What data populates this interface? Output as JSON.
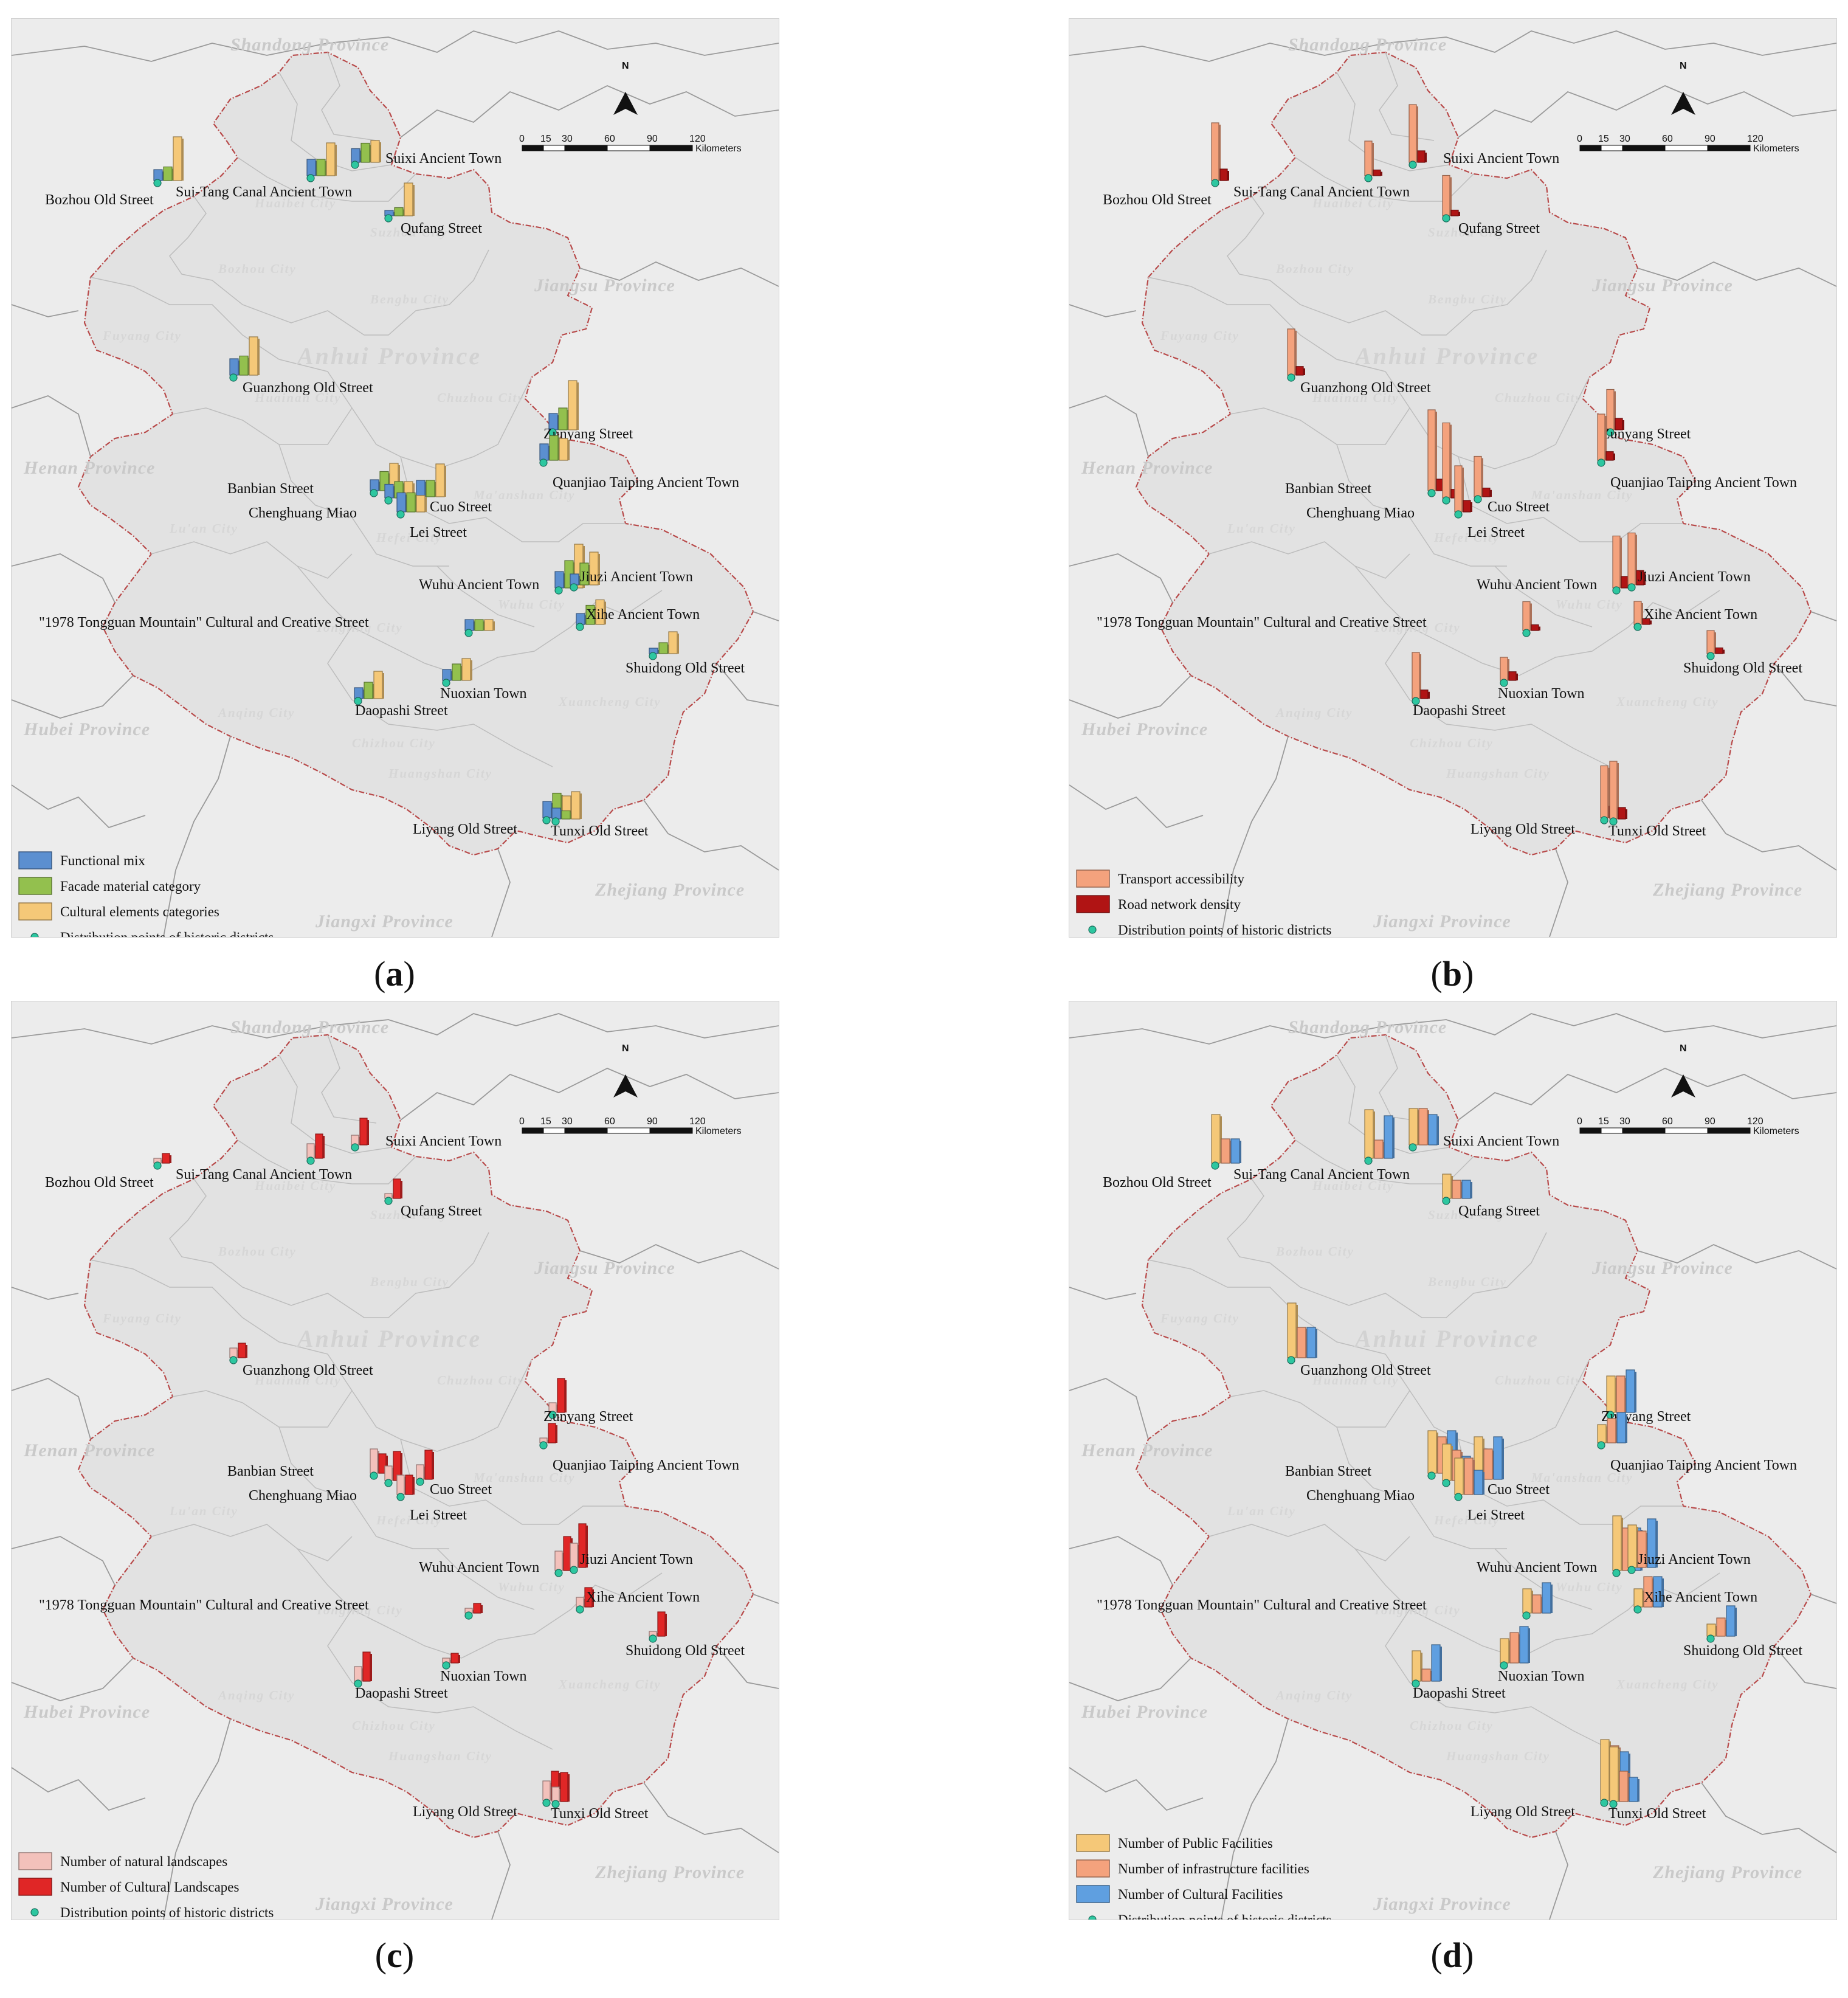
{
  "panels": [
    {
      "label": "a",
      "legend": [
        "Functional mix",
        "Facade material category",
        "Cultural elements categories",
        "Distribution points of historic districts"
      ],
      "colors": [
        "#5b8fd0",
        "#93c04e",
        "#f5c878"
      ]
    },
    {
      "label": "b",
      "legend": [
        "Transport accessibility",
        "Road network density",
        "Distribution points of historic districts"
      ],
      "colors": [
        "#f4a27d",
        "#b01414"
      ]
    },
    {
      "label": "c",
      "legend": [
        "Number of natural landscapes",
        "Number of Cultural Landscapes",
        "Distribution points of historic districts"
      ],
      "colors": [
        "#f3c1bb",
        "#e02626"
      ]
    },
    {
      "label": "d",
      "legend": [
        "Number of Public Facilities",
        "Number of infrastructure facilities",
        "Number of Cultural Facilities",
        "Distribution points of historic districts"
      ],
      "colors": [
        "#f5c878",
        "#f4a27d",
        "#5f9fe0"
      ]
    }
  ],
  "map_text": {
    "provinces": [
      "Shandong Province",
      "Jiangsu Province",
      "Henan Province",
      "Hubei Province",
      "Jiangxi Province",
      "Zhejiang Province"
    ],
    "main_region": "Anhui Province",
    "cities": [
      "Huaibei City",
      "Suzhou City",
      "Bozhou City",
      "Bengbu City",
      "Fuyang City",
      "Huainan City",
      "Chuzhou City",
      "Lu'an City",
      "Hefei City",
      "Ma'anshan City",
      "Wuhu City",
      "Tongling City",
      "Xuancheng City",
      "Anqing City",
      "Chizhou City",
      "Huangshan City"
    ],
    "scale_ticks": [
      "0",
      "15",
      "30",
      "60",
      "90",
      "120"
    ],
    "scale_unit": "Kilometers",
    "north": "N"
  },
  "sites": [
    {
      "name": "Bozhou Old Street",
      "a": [
        2,
        2.5,
        8
      ],
      "b": [
        10,
        2
      ],
      "c": [
        1,
        2
      ],
      "d": [
        8,
        4,
        4
      ]
    },
    {
      "name": "Sui-Tang Canal Ancient Town",
      "a": [
        3,
        3,
        6
      ],
      "b": [
        6,
        1
      ],
      "c": [
        3,
        5
      ],
      "d": [
        8,
        3,
        7
      ]
    },
    {
      "name": "Suixi Ancient Town",
      "a": [
        2.5,
        3.5,
        4
      ],
      "b": [
        10,
        2
      ],
      "c": [
        2,
        5.5
      ],
      "d": [
        6,
        6,
        5
      ]
    },
    {
      "name": "Qufang Street",
      "a": [
        1,
        1.5,
        6
      ],
      "b": [
        7,
        1
      ],
      "c": [
        1,
        4
      ],
      "d": [
        4,
        3,
        3
      ]
    },
    {
      "name": "Guanzhong Old Street",
      "a": [
        3,
        3.5,
        7
      ],
      "b": [
        8,
        1.5
      ],
      "c": [
        2,
        3
      ],
      "d": [
        9,
        5,
        5
      ]
    },
    {
      "name": "Zunyang Street",
      "a": [
        3,
        4,
        9
      ],
      "b": [
        7,
        2
      ],
      "c": [
        2,
        7
      ],
      "d": [
        6,
        6,
        7
      ]
    },
    {
      "name": "Quanjiao Taiping Ancient Town",
      "a": [
        3,
        4.5,
        4
      ],
      "b": [
        8,
        1.5
      ],
      "c": [
        1,
        4
      ],
      "d": [
        3,
        4,
        5
      ]
    },
    {
      "name": "Banbian Street",
      "a": [
        2,
        3.5,
        5
      ],
      "b": [
        14,
        2
      ],
      "c": [
        5,
        4
      ],
      "d": [
        7,
        6,
        7
      ]
    },
    {
      "name": "Chenghuang Miao",
      "a": [
        2.5,
        3,
        3
      ],
      "b": [
        13,
        1.5
      ],
      "c": [
        3,
        6
      ],
      "d": [
        6,
        5,
        4
      ]
    },
    {
      "name": "Cuo Street",
      "a": [
        3,
        3,
        6
      ],
      "b": [
        7,
        1.5
      ],
      "c": [
        3,
        6
      ],
      "d": [
        7,
        5,
        7
      ]
    },
    {
      "name": "Lei Street",
      "a": [
        3.5,
        3.5,
        3
      ],
      "b": [
        8,
        2
      ],
      "c": [
        4,
        4
      ],
      "d": [
        6,
        6,
        4
      ]
    },
    {
      "name": "Wuhu Ancient Town",
      "a": [
        3,
        5,
        8
      ],
      "b": [
        9,
        2
      ],
      "c": [
        4,
        7
      ],
      "d": [
        9,
        7,
        7
      ]
    },
    {
      "name": "Jiuzi Ancient Town",
      "a": [
        2,
        4,
        6
      ],
      "b": [
        9,
        2.5
      ],
      "c": [
        5,
        9
      ],
      "d": [
        7,
        6,
        8
      ]
    },
    {
      "name": "Xihe Ancient Town",
      "a": [
        2,
        3.5,
        4.5
      ],
      "b": [
        4,
        1
      ],
      "c": [
        2,
        4
      ],
      "d": [
        3,
        5,
        5
      ]
    },
    {
      "name": "\"1978 Tongguan Mountain\" Cultural and Creative Street",
      "a": [
        2,
        2,
        2
      ],
      "b": [
        5,
        1
      ],
      "c": [
        1,
        2
      ],
      "d": [
        4,
        3,
        5
      ]
    },
    {
      "name": "Shuidong Old Street",
      "a": [
        1,
        2,
        4
      ],
      "b": [
        4,
        1
      ],
      "c": [
        1,
        5
      ],
      "d": [
        2,
        3,
        5
      ]
    },
    {
      "name": "Nuoxian Town",
      "a": [
        2,
        3,
        4
      ],
      "b": [
        4,
        1.5
      ],
      "c": [
        1,
        2
      ],
      "d": [
        4,
        5,
        6
      ]
    },
    {
      "name": "Daopashi Street",
      "a": [
        2,
        3,
        5
      ],
      "b": [
        8,
        1.5
      ],
      "c": [
        3,
        6
      ],
      "d": [
        5,
        2,
        6
      ]
    },
    {
      "name": "Liyang Old Street",
      "a": [
        3,
        4.5,
        4
      ],
      "b": [
        9,
        2
      ],
      "c": [
        4,
        6
      ],
      "d": [
        10,
        9,
        8
      ]
    },
    {
      "name": "Tunxi Old Street",
      "a": [
        2,
        1.5,
        5
      ],
      "b": [
        10,
        2
      ],
      "c": [
        3,
        6
      ],
      "d": [
        9,
        5,
        4
      ]
    }
  ]
}
